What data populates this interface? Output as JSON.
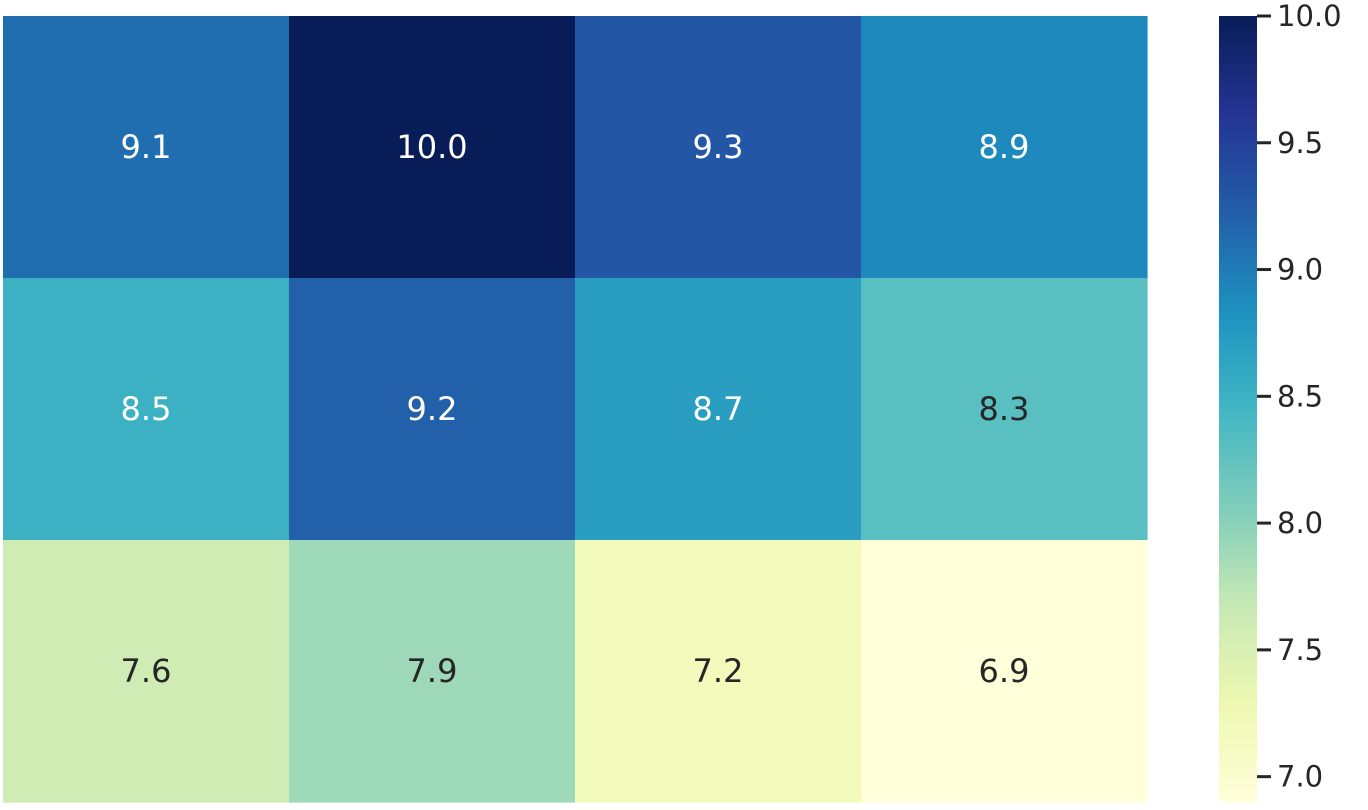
{
  "chart_data": {
    "type": "heatmap",
    "title": "",
    "xlabel": "",
    "ylabel": "",
    "rows": 3,
    "cols": 4,
    "values": [
      [
        9.1,
        10.0,
        9.3,
        8.9
      ],
      [
        8.5,
        9.2,
        8.7,
        8.3
      ],
      [
        7.6,
        7.9,
        7.2,
        6.9
      ]
    ],
    "cell_labels": [
      [
        "9.1",
        "10.0",
        "9.3",
        "8.9"
      ],
      [
        "8.5",
        "9.2",
        "8.7",
        "8.3"
      ],
      [
        "7.6",
        "7.9",
        "7.2",
        "6.9"
      ]
    ],
    "colorbar": {
      "range": [
        6.9,
        10.0
      ],
      "ticks": [
        7.0,
        7.5,
        8.0,
        8.5,
        9.0,
        9.5,
        10.0
      ],
      "tick_labels": [
        "7.0",
        "7.5",
        "8.0",
        "8.5",
        "9.0",
        "9.5",
        "10.0"
      ]
    },
    "colormap": "YlGnBu",
    "colormap_stops": [
      "#ffffd9",
      "#edf8b1",
      "#c7e9b4",
      "#7fcdbb",
      "#41b6c4",
      "#1d91c0",
      "#225ea8",
      "#253494",
      "#081d58"
    ],
    "annotation_colors": {
      "light": "#ffffff",
      "dark": "#262626"
    }
  }
}
